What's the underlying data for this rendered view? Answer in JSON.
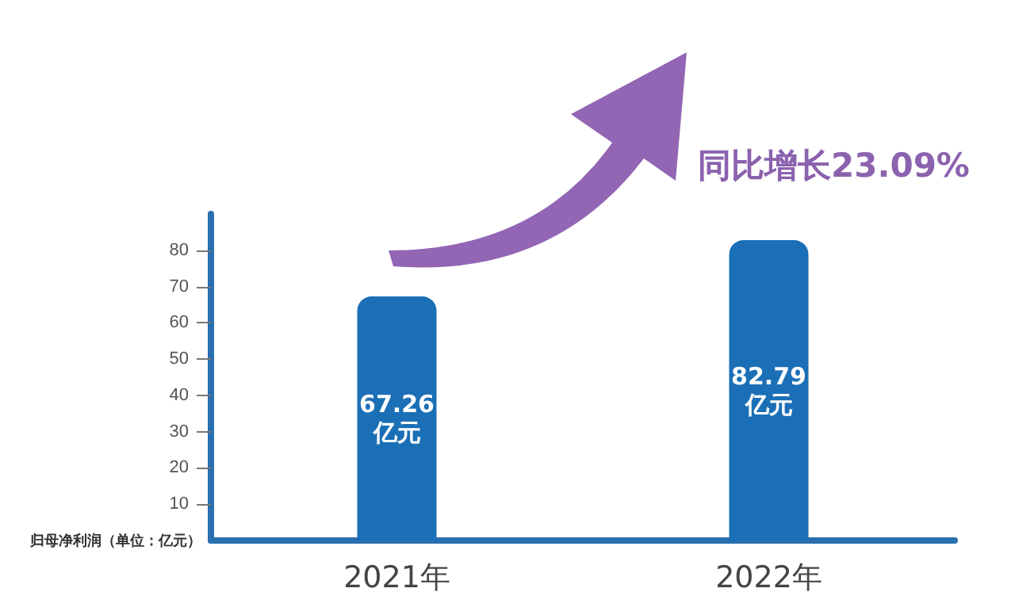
{
  "chart_data": {
    "type": "bar",
    "ylabel": "归母净利润（单位：亿元）",
    "categories": [
      "2021年",
      "2022年"
    ],
    "values": [
      67.26,
      82.79
    ],
    "color": "#1b6fb6",
    "value_labels": [
      "67.26\n亿元",
      "82.79\n亿元"
    ],
    "ylim": [
      0,
      90
    ],
    "yticks": [
      10,
      20,
      30,
      40,
      50,
      60,
      70,
      80
    ],
    "grid": false,
    "annotations": [
      "同比增长23.09%"
    ]
  }
}
